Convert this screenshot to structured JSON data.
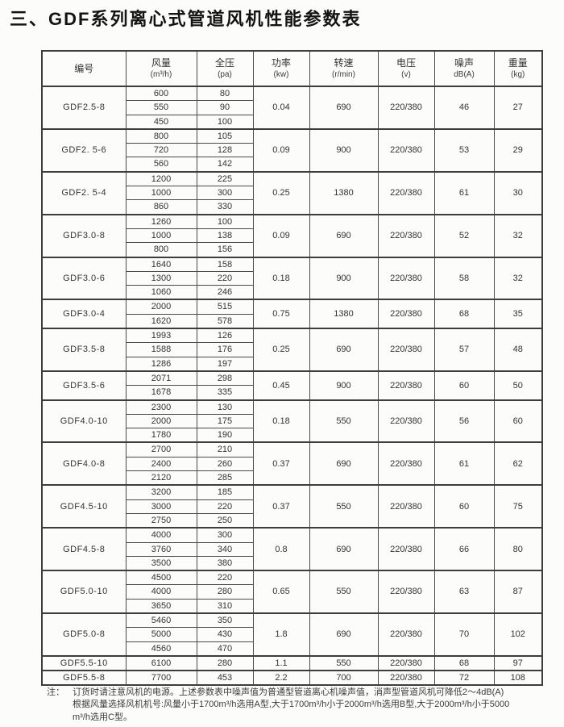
{
  "title": "三、GDF系列离心式管道风机性能参数表",
  "table": {
    "columns": [
      {
        "label": "编号",
        "unit": ""
      },
      {
        "label": "风量",
        "unit": "(m³/h)"
      },
      {
        "label": "全压",
        "unit": "(pa)"
      },
      {
        "label": "功率",
        "unit": "(kw)"
      },
      {
        "label": "转速",
        "unit": "(r/min)"
      },
      {
        "label": "电压",
        "unit": "(v)"
      },
      {
        "label": "噪声",
        "unit": "dB(A)"
      },
      {
        "label": "重量",
        "unit": "(kg)"
      }
    ],
    "groups": [
      {
        "model": "GDF2.5-8",
        "rows": [
          [
            "600",
            "80"
          ],
          [
            "550",
            "90"
          ],
          [
            "450",
            "100"
          ]
        ],
        "power": "0.04",
        "speed": "690",
        "voltage": "220/380",
        "noise": "46",
        "weight": "27"
      },
      {
        "model": "GDF2. 5-6",
        "rows": [
          [
            "800",
            "105"
          ],
          [
            "720",
            "128"
          ],
          [
            "560",
            "142"
          ]
        ],
        "power": "0.09",
        "speed": "900",
        "voltage": "220/380",
        "noise": "53",
        "weight": "29"
      },
      {
        "model": "GDF2. 5-4",
        "rows": [
          [
            "1200",
            "225"
          ],
          [
            "1000",
            "300"
          ],
          [
            "860",
            "330"
          ]
        ],
        "power": "0.25",
        "speed": "1380",
        "voltage": "220/380",
        "noise": "61",
        "weight": "30"
      },
      {
        "model": "GDF3.0-8",
        "rows": [
          [
            "1260",
            "100"
          ],
          [
            "1000",
            "138"
          ],
          [
            "800",
            "156"
          ]
        ],
        "power": "0.09",
        "speed": "690",
        "voltage": "220/380",
        "noise": "52",
        "weight": "32"
      },
      {
        "model": "GDF3.0-6",
        "rows": [
          [
            "1640",
            "158"
          ],
          [
            "1300",
            "220"
          ],
          [
            "1060",
            "246"
          ]
        ],
        "power": "0.18",
        "speed": "900",
        "voltage": "220/380",
        "noise": "58",
        "weight": "32"
      },
      {
        "model": "GDF3.0-4",
        "rows": [
          [
            "2000",
            "515"
          ],
          [
            "1620",
            "578"
          ]
        ],
        "power": "0.75",
        "speed": "1380",
        "voltage": "220/380",
        "noise": "68",
        "weight": "35"
      },
      {
        "model": "GDF3.5-8",
        "rows": [
          [
            "1993",
            "126"
          ],
          [
            "1588",
            "176"
          ],
          [
            "1286",
            "197"
          ]
        ],
        "power": "0.25",
        "speed": "690",
        "voltage": "220/380",
        "noise": "57",
        "weight": "48"
      },
      {
        "model": "GDF3.5-6",
        "rows": [
          [
            "2071",
            "298"
          ],
          [
            "1678",
            "335"
          ]
        ],
        "power": "0.45",
        "speed": "900",
        "voltage": "220/380",
        "noise": "60",
        "weight": "50"
      },
      {
        "model": "GDF4.0-10",
        "rows": [
          [
            "2300",
            "130"
          ],
          [
            "2000",
            "175"
          ],
          [
            "1780",
            "190"
          ]
        ],
        "power": "0.18",
        "speed": "550",
        "voltage": "220/380",
        "noise": "56",
        "weight": "60"
      },
      {
        "model": "GDF4.0-8",
        "rows": [
          [
            "2700",
            "210"
          ],
          [
            "2400",
            "260"
          ],
          [
            "2120",
            "285"
          ]
        ],
        "power": "0.37",
        "speed": "690",
        "voltage": "220/380",
        "noise": "61",
        "weight": "62"
      },
      {
        "model": "GDF4.5-10",
        "rows": [
          [
            "3200",
            "185"
          ],
          [
            "3000",
            "220"
          ],
          [
            "2750",
            "250"
          ]
        ],
        "power": "0.37",
        "speed": "550",
        "voltage": "220/380",
        "noise": "60",
        "weight": "75"
      },
      {
        "model": "GDF4.5-8",
        "rows": [
          [
            "4000",
            "300"
          ],
          [
            "3760",
            "340"
          ],
          [
            "3500",
            "380"
          ]
        ],
        "power": "0.8",
        "speed": "690",
        "voltage": "220/380",
        "noise": "66",
        "weight": "80"
      },
      {
        "model": "GDF5.0-10",
        "rows": [
          [
            "4500",
            "220"
          ],
          [
            "4000",
            "280"
          ],
          [
            "3650",
            "310"
          ]
        ],
        "power": "0.65",
        "speed": "550",
        "voltage": "220/380",
        "noise": "63",
        "weight": "87"
      },
      {
        "model": "GDF5.0-8",
        "rows": [
          [
            "5460",
            "350"
          ],
          [
            "5000",
            "430"
          ],
          [
            "4560",
            "470"
          ]
        ],
        "power": "1.8",
        "speed": "690",
        "voltage": "220/380",
        "noise": "70",
        "weight": "102"
      },
      {
        "model": "GDF5.5-10",
        "rows": [
          [
            "6100",
            "280"
          ]
        ],
        "power": "1.1",
        "speed": "550",
        "voltage": "220/380",
        "noise": "68",
        "weight": "97"
      },
      {
        "model": "GDF5.5-8",
        "rows": [
          [
            "7700",
            "453"
          ]
        ],
        "power": "2.2",
        "speed": "700",
        "voltage": "220/380",
        "noise": "72",
        "weight": "108"
      }
    ]
  },
  "note": {
    "label": "注：",
    "lines": [
      "订货时请注意风机的电源。上述参数表中噪声值为普通型管道离心机噪声值，消声型管道风机可降低2～4dB(A)",
      "根据风量选择风机机号:风量小于1700m³/h选用A型,大于1700m³/h小于2000m³/h选用B型,大于2000m³/h小于5000",
      "m³/h选用C型。"
    ]
  },
  "colors": {
    "border": "#3d3d3d",
    "text": "#2f2f2f",
    "background": "#fcfcfb"
  }
}
